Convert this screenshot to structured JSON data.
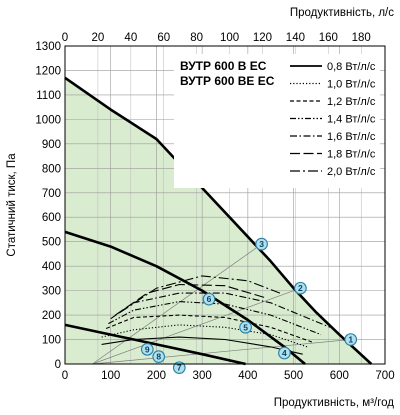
{
  "chart_data": {
    "type": "line",
    "x_bottom": {
      "label": "Продуктивність, м³/год",
      "range": [
        0,
        700
      ],
      "ticks": [
        "0",
        "100",
        "200",
        "300",
        "400",
        "500",
        "600",
        "700"
      ]
    },
    "x_top": {
      "label": "Продуктивність, л/с",
      "range": [
        0,
        194.44
      ],
      "ticks": [
        "0",
        "20",
        "40",
        "60",
        "80",
        "100",
        "120",
        "140",
        "160",
        "180"
      ]
    },
    "y": {
      "label": "Статичний тиск, Па",
      "range": [
        0,
        1300
      ],
      "ticks": [
        "0",
        "100",
        "200",
        "300",
        "400",
        "500",
        "600",
        "700",
        "800",
        "900",
        "1000",
        "1100",
        "1200",
        "1300"
      ]
    },
    "grid": true,
    "legend_placement": "top-right",
    "model_labels": [
      "ВУТР 600 В ЕС",
      "ВУТР 600 ВЕ ЕС"
    ],
    "operating_area_color": "#d9ecd0",
    "fan_curves": [
      {
        "name": "curve-max",
        "x": [
          0,
          100,
          200,
          300,
          400,
          450,
          500,
          550,
          600,
          670
        ],
        "y": [
          1170,
          1040,
          920,
          720,
          520,
          420,
          310,
          210,
          120,
          0
        ]
      },
      {
        "name": "curve-mid",
        "x": [
          0,
          100,
          200,
          300,
          400,
          480,
          525
        ],
        "y": [
          540,
          480,
          400,
          300,
          180,
          70,
          0
        ]
      },
      {
        "name": "curve-low",
        "x": [
          0,
          100,
          200,
          300,
          395
        ],
        "y": [
          160,
          120,
          80,
          40,
          0
        ]
      }
    ],
    "sfp_series": [
      {
        "name": "0,8 Вт/л/с",
        "style": "solid",
        "x": [
          80,
          150,
          250,
          350,
          450,
          520
        ],
        "y": [
          80,
          100,
          110,
          100,
          70,
          40
        ]
      },
      {
        "name": "1,0 Вт/л/с",
        "style": "dotted",
        "x": [
          80,
          150,
          250,
          350,
          450,
          530
        ],
        "y": [
          110,
          140,
          160,
          150,
          120,
          70
        ]
      },
      {
        "name": "1,2 Вт/л/с",
        "style": "short-dash",
        "x": [
          90,
          150,
          250,
          350,
          450,
          540
        ],
        "y": [
          145,
          190,
          200,
          190,
          150,
          90
        ]
      },
      {
        "name": "1,4 Вт/л/с",
        "style": "dash-dot-dot",
        "x": [
          95,
          150,
          250,
          350,
          450,
          560
        ],
        "y": [
          165,
          220,
          255,
          245,
          200,
          120
        ]
      },
      {
        "name": "1,6 Вт/л/с",
        "style": "dash-dot",
        "x": [
          100,
          150,
          250,
          350,
          450,
          580
        ],
        "y": [
          185,
          250,
          290,
          290,
          250,
          150
        ]
      },
      {
        "name": "1,8 Вт/л/с",
        "style": "long-dash",
        "x": [
          110,
          180,
          250,
          350,
          440
        ],
        "y": [
          200,
          290,
          325,
          320,
          270
        ]
      },
      {
        "name": "2,0 Вт/л/с",
        "style": "long-dash-dot",
        "x": [
          120,
          200,
          300,
          400,
          470
        ],
        "y": [
          210,
          310,
          360,
          340,
          290
        ]
      }
    ],
    "operating_points": [
      {
        "label": "1",
        "x": 625,
        "y": 100
      },
      {
        "label": "2",
        "x": 515,
        "y": 310
      },
      {
        "label": "3",
        "x": 430,
        "y": 490
      },
      {
        "label": "4",
        "x": 480,
        "y": 45
      },
      {
        "label": "5",
        "x": 395,
        "y": 150
      },
      {
        "label": "6",
        "x": 315,
        "y": 265
      },
      {
        "label": "7",
        "x": 250,
        "y": -15
      },
      {
        "label": "8",
        "x": 205,
        "y": 30
      },
      {
        "label": "9",
        "x": 180,
        "y": 60
      }
    ],
    "system_curves": [
      {
        "x": [
          60,
          625
        ],
        "y": [
          0,
          100
        ]
      },
      {
        "x": [
          60,
          515
        ],
        "y": [
          0,
          310
        ]
      },
      {
        "x": [
          60,
          430
        ],
        "y": [
          0,
          490
        ]
      }
    ]
  }
}
